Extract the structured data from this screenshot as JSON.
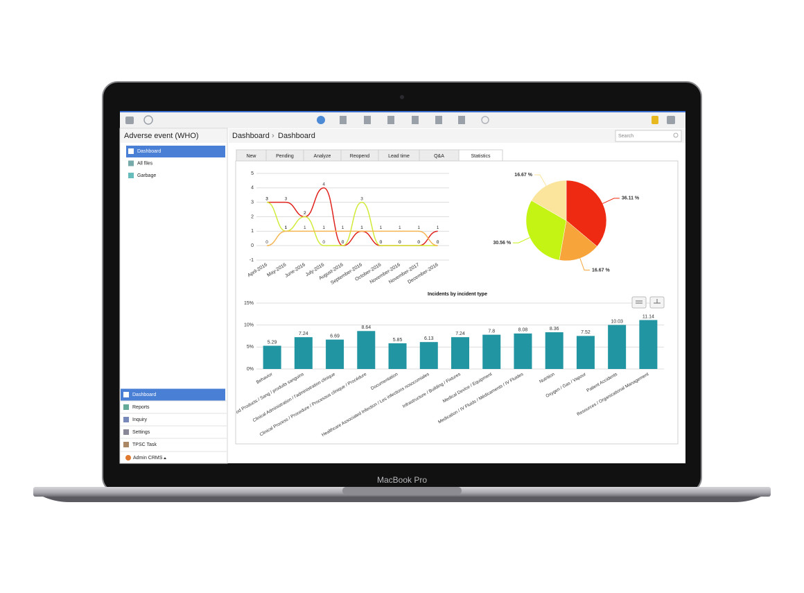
{
  "device_label": "MacBook Pro",
  "app": {
    "title": "Adverse event (WHO)",
    "breadcrumb": [
      "Dashboard",
      "Dashboard"
    ],
    "breadcrumb_separator": "›",
    "search_placeholder": "Search",
    "tree": [
      "Dashboard",
      "All files",
      "Garbage"
    ],
    "nav": [
      "Dashboard",
      "Reports",
      "Inquiry",
      "Settings",
      "TPSC Task"
    ],
    "user": "Admin CRMS",
    "tabs": [
      "New",
      "Pending",
      "Analyze",
      "Reopend",
      "Lead time",
      "Q&A",
      "Statistics"
    ]
  },
  "chart_data": [
    {
      "type": "line",
      "categories": [
        "April-2016",
        "May-2016",
        "June-2016",
        "July-2016",
        "August-2016",
        "September-2016",
        "October-2016",
        "November-2016",
        "November-2017",
        "December-2016"
      ],
      "series": [
        {
          "color": "#e0221c",
          "values": [
            3,
            3,
            2,
            4,
            0,
            1,
            0,
            0,
            0,
            1
          ]
        },
        {
          "color": "#d2ea3a",
          "values": [
            3,
            1,
            2,
            0,
            0,
            3,
            0,
            0,
            0,
            0
          ]
        },
        {
          "color": "#f5b552",
          "values": [
            0,
            1,
            1,
            1,
            1,
            1,
            1,
            1,
            1,
            0
          ]
        }
      ],
      "ylim": [
        -1,
        5
      ],
      "yticks": [
        -1,
        0,
        1,
        2,
        3,
        4,
        5
      ],
      "grid": true
    },
    {
      "type": "pie",
      "values": [
        36.11,
        16.67,
        30.56,
        16.67
      ],
      "value_labels": [
        "36.11 %",
        "16.67 %",
        "30.56 %",
        "16.67 %"
      ],
      "colors": [
        "#ef2a12",
        "#f7a43a",
        "#c4f414",
        "#fbe49c"
      ]
    },
    {
      "type": "bar",
      "title": "Incidents by incident type",
      "categories": [
        "Behavior",
        "Blood Products / Sang / produits sanguins",
        "Clinical Administration / l'administration clinique",
        "Clinical Process / Procedure / Processus clinique / Procédure",
        "Documentation",
        "Healthcare Associated Infection / Les infections nosocomiales",
        "Infrastructure / Building / Fixtures",
        "Medical Device / Equipment",
        "Medication / IV Fluids / Médicaments / IV Fluides",
        "Nutrition",
        "Oxygen / Gas / Vapour",
        "Patient Accidents",
        "Resources / Organizational Management"
      ],
      "values": [
        5.29,
        7.24,
        6.69,
        8.64,
        5.85,
        6.13,
        7.24,
        7.8,
        8.08,
        8.36,
        7.52,
        10.03,
        11.14
      ],
      "color": "#2196a2",
      "ylim": [
        0,
        15
      ],
      "yticks": [
        {
          "value": 0,
          "label": "0%"
        },
        {
          "value": 5,
          "label": "5%"
        },
        {
          "value": 10,
          "label": "10%"
        },
        {
          "value": 15,
          "label": "15%"
        }
      ],
      "grid": true
    }
  ]
}
